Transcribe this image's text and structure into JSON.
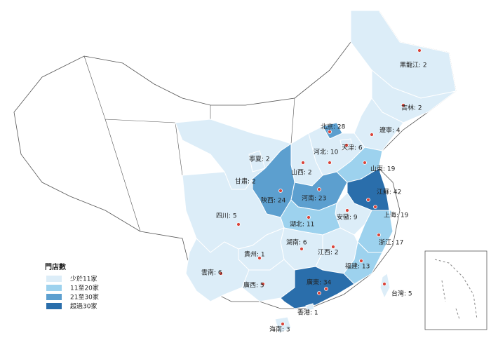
{
  "legend": {
    "title": "門店數",
    "items": [
      {
        "label": "少於11家",
        "color": "#dcedf8"
      },
      {
        "label": "11至20家",
        "color": "#9dd2ee"
      },
      {
        "label": "21至30家",
        "color": "#5c9fcf"
      },
      {
        "label": "超過30家",
        "color": "#2a6eab"
      }
    ]
  },
  "provinces": [
    {
      "label": "黑龍江: 2",
      "count": 2,
      "color": "#dcedf8"
    },
    {
      "label": "吉林: 2",
      "count": 2,
      "color": "#dcedf8"
    },
    {
      "label": "遼寧: 4",
      "count": 4,
      "color": "#dcedf8"
    },
    {
      "label": "北京: 28",
      "count": 28,
      "color": "#5c9fcf"
    },
    {
      "label": "天津: 6",
      "count": 6,
      "color": "#dcedf8"
    },
    {
      "label": "河北: 10",
      "count": 10,
      "color": "#dcedf8"
    },
    {
      "label": "山西: 2",
      "count": 2,
      "color": "#dcedf8"
    },
    {
      "label": "寧夏: 2",
      "count": 2,
      "color": "#dcedf8"
    },
    {
      "label": "甘肅: 2",
      "count": 2,
      "color": "#dcedf8"
    },
    {
      "label": "陝西: 24",
      "count": 24,
      "color": "#5c9fcf"
    },
    {
      "label": "河南: 23",
      "count": 23,
      "color": "#5c9fcf"
    },
    {
      "label": "山東: 19",
      "count": 19,
      "color": "#9dd2ee"
    },
    {
      "label": "江蘇: 42",
      "count": 42,
      "color": "#2a6eab"
    },
    {
      "label": "上海: 19",
      "count": 19,
      "color": "#9dd2ee"
    },
    {
      "label": "安徽: 9",
      "count": 9,
      "color": "#dcedf8"
    },
    {
      "label": "湖北: 11",
      "count": 11,
      "color": "#9dd2ee"
    },
    {
      "label": "四川: 5",
      "count": 5,
      "color": "#dcedf8"
    },
    {
      "label": "浙江: 17",
      "count": 17,
      "color": "#9dd2ee"
    },
    {
      "label": "湖南: 6",
      "count": 6,
      "color": "#dcedf8"
    },
    {
      "label": "江西: 2",
      "count": 2,
      "color": "#dcedf8"
    },
    {
      "label": "貴州: 1",
      "count": 1,
      "color": "#dcedf8"
    },
    {
      "label": "福建: 13",
      "count": 13,
      "color": "#9dd2ee"
    },
    {
      "label": "雲南: 6",
      "count": 6,
      "color": "#dcedf8"
    },
    {
      "label": "廣西: 5",
      "count": 5,
      "color": "#dcedf8"
    },
    {
      "label": "廣東: 34",
      "count": 34,
      "color": "#2a6eab"
    },
    {
      "label": "台灣: 5",
      "count": 5,
      "color": "#dcedf8"
    },
    {
      "label": "香港: 1",
      "count": 1,
      "color": "#dcedf8"
    },
    {
      "label": "海南: 3",
      "count": 3,
      "color": "#dcedf8"
    }
  ]
}
